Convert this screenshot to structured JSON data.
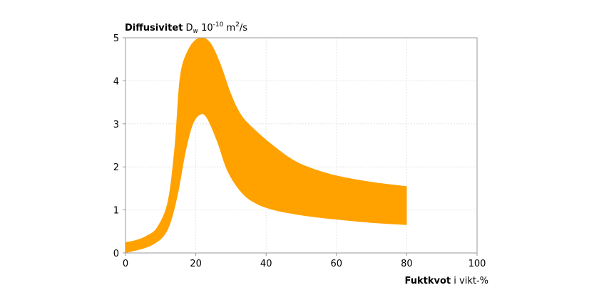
{
  "chart_data": {
    "type": "area",
    "ylabel": {
      "bold": "Diffusivitet",
      "symbol": "D",
      "symbol_sub": "w",
      "factor_base": "10",
      "factor_exp": "-10",
      "unit_base": "m",
      "unit_exp": "2",
      "unit_tail": "/s"
    },
    "xlabel": {
      "bold": "Fuktkvot",
      "rest": " i vikt-%"
    },
    "xlim": [
      0,
      100
    ],
    "ylim": [
      0,
      5
    ],
    "x_ticks": [
      "0",
      "20",
      "40",
      "60",
      "80",
      "100"
    ],
    "y_ticks": [
      "0",
      "1",
      "2",
      "3",
      "4",
      "5"
    ],
    "grid": true,
    "band_color": "#FFA200",
    "series": [
      {
        "upper": [
          {
            "x": 0,
            "y": 0.25
          },
          {
            "x": 3,
            "y": 0.3
          },
          {
            "x": 6,
            "y": 0.4
          },
          {
            "x": 9,
            "y": 0.6
          },
          {
            "x": 12,
            "y": 1.2
          },
          {
            "x": 14,
            "y": 2.5
          },
          {
            "x": 15.5,
            "y": 4.1
          },
          {
            "x": 18,
            "y": 4.75
          },
          {
            "x": 21,
            "y": 5.0
          },
          {
            "x": 24,
            "y": 4.9
          },
          {
            "x": 27,
            "y": 4.4
          },
          {
            "x": 30,
            "y": 3.7
          },
          {
            "x": 33,
            "y": 3.2
          },
          {
            "x": 37,
            "y": 2.85
          },
          {
            "x": 42,
            "y": 2.5
          },
          {
            "x": 47,
            "y": 2.2
          },
          {
            "x": 52,
            "y": 2.0
          },
          {
            "x": 60,
            "y": 1.8
          },
          {
            "x": 70,
            "y": 1.65
          },
          {
            "x": 80,
            "y": 1.55
          }
        ],
        "lower": [
          {
            "x": 0,
            "y": 0.0
          },
          {
            "x": 5,
            "y": 0.1
          },
          {
            "x": 8,
            "y": 0.2
          },
          {
            "x": 11,
            "y": 0.4
          },
          {
            "x": 13,
            "y": 0.75
          },
          {
            "x": 15,
            "y": 1.4
          },
          {
            "x": 17,
            "y": 2.3
          },
          {
            "x": 19,
            "y": 2.95
          },
          {
            "x": 21,
            "y": 3.2
          },
          {
            "x": 23,
            "y": 3.15
          },
          {
            "x": 26,
            "y": 2.6
          },
          {
            "x": 29,
            "y": 1.9
          },
          {
            "x": 33,
            "y": 1.4
          },
          {
            "x": 37,
            "y": 1.15
          },
          {
            "x": 42,
            "y": 1.0
          },
          {
            "x": 48,
            "y": 0.9
          },
          {
            "x": 55,
            "y": 0.82
          },
          {
            "x": 62,
            "y": 0.76
          },
          {
            "x": 70,
            "y": 0.7
          },
          {
            "x": 80,
            "y": 0.65
          }
        ]
      }
    ]
  }
}
